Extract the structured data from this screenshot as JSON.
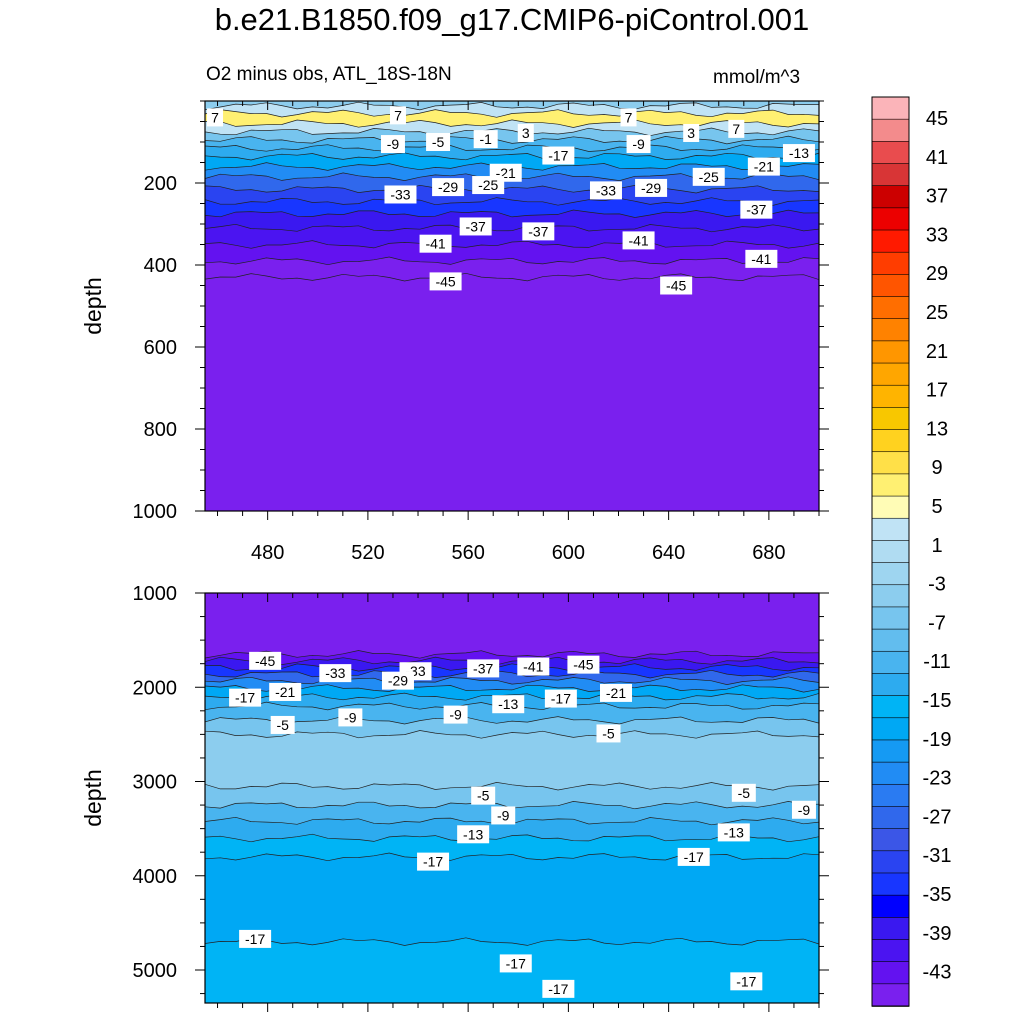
{
  "title": "b.e21.B1850.f09_g17.CMIP6-piControl.001",
  "subtitle_left": "O2 minus obs, ATL_18S-18N",
  "subtitle_right": "mmol/m^3",
  "chart_data": [
    {
      "type": "heatmap",
      "panel": "upper",
      "ylabel": "depth",
      "xlim": [
        455,
        700
      ],
      "ylim": [
        1000,
        0
      ],
      "x_ticks": [
        480,
        520,
        560,
        600,
        640,
        680
      ],
      "y_ticks": [
        200,
        400,
        600,
        800,
        1000
      ],
      "depth_bands": [
        {
          "from": 0,
          "to": 12,
          "value": -3
        },
        {
          "from": 12,
          "to": 30,
          "value": 3
        },
        {
          "from": 30,
          "to": 55,
          "value": 7
        },
        {
          "from": 55,
          "to": 75,
          "value": 3
        },
        {
          "from": 75,
          "to": 95,
          "value": -5
        },
        {
          "from": 95,
          "to": 115,
          "value": -9
        },
        {
          "from": 115,
          "to": 135,
          "value": -13
        },
        {
          "from": 135,
          "to": 160,
          "value": -17
        },
        {
          "from": 160,
          "to": 185,
          "value": -21
        },
        {
          "from": 185,
          "to": 215,
          "value": -25
        },
        {
          "from": 215,
          "to": 245,
          "value": -29
        },
        {
          "from": 245,
          "to": 275,
          "value": -33
        },
        {
          "from": 275,
          "to": 310,
          "value": -37
        },
        {
          "from": 310,
          "to": 350,
          "value": -39
        },
        {
          "from": 350,
          "to": 390,
          "value": -41
        },
        {
          "from": 390,
          "to": 430,
          "value": -43
        },
        {
          "from": 430,
          "to": 1000,
          "value": -45
        }
      ],
      "contour_labels": [
        {
          "x": 459,
          "y": 40,
          "text": "7"
        },
        {
          "x": 532,
          "y": 35,
          "text": "7"
        },
        {
          "x": 530,
          "y": 105,
          "text": "-9"
        },
        {
          "x": 548,
          "y": 100,
          "text": "-5"
        },
        {
          "x": 567,
          "y": 93,
          "text": "-1"
        },
        {
          "x": 583,
          "y": 78,
          "text": "3"
        },
        {
          "x": 624,
          "y": 40,
          "text": "7"
        },
        {
          "x": 649,
          "y": 78,
          "text": "3"
        },
        {
          "x": 667,
          "y": 68,
          "text": "7"
        },
        {
          "x": 628,
          "y": 105,
          "text": "-9"
        },
        {
          "x": 596,
          "y": 133,
          "text": "-17"
        },
        {
          "x": 575,
          "y": 175,
          "text": "-21"
        },
        {
          "x": 678,
          "y": 160,
          "text": "-21"
        },
        {
          "x": 692,
          "y": 127,
          "text": "-13"
        },
        {
          "x": 656,
          "y": 185,
          "text": "-25"
        },
        {
          "x": 533,
          "y": 228,
          "text": "-33"
        },
        {
          "x": 552,
          "y": 210,
          "text": "-29"
        },
        {
          "x": 568,
          "y": 205,
          "text": "-25"
        },
        {
          "x": 615,
          "y": 218,
          "text": "-33"
        },
        {
          "x": 633,
          "y": 212,
          "text": "-29"
        },
        {
          "x": 675,
          "y": 265,
          "text": "-37"
        },
        {
          "x": 588,
          "y": 318,
          "text": "-37"
        },
        {
          "x": 563,
          "y": 306,
          "text": "-37"
        },
        {
          "x": 547,
          "y": 348,
          "text": "-41"
        },
        {
          "x": 628,
          "y": 340,
          "text": "-41"
        },
        {
          "x": 677,
          "y": 385,
          "text": "-41"
        },
        {
          "x": 551,
          "y": 440,
          "text": "-45"
        },
        {
          "x": 643,
          "y": 450,
          "text": "-45"
        }
      ]
    },
    {
      "type": "heatmap",
      "panel": "lower",
      "ylabel": "depth",
      "xlim": [
        455,
        700
      ],
      "ylim": [
        5350,
        1000
      ],
      "y_ticks": [
        1000,
        2000,
        3000,
        4000,
        5000
      ],
      "depth_bands": [
        {
          "from": 1000,
          "to": 1650,
          "value": -43
        },
        {
          "from": 1650,
          "to": 1720,
          "value": -41
        },
        {
          "from": 1720,
          "to": 1790,
          "value": -37
        },
        {
          "from": 1790,
          "to": 1860,
          "value": -31
        },
        {
          "from": 1860,
          "to": 1930,
          "value": -25
        },
        {
          "from": 1930,
          "to": 2010,
          "value": -21
        },
        {
          "from": 2010,
          "to": 2100,
          "value": -17
        },
        {
          "from": 2100,
          "to": 2200,
          "value": -13
        },
        {
          "from": 2200,
          "to": 2350,
          "value": -9
        },
        {
          "from": 2350,
          "to": 2500,
          "value": -5
        },
        {
          "from": 2500,
          "to": 3050,
          "value": -3
        },
        {
          "from": 3050,
          "to": 3250,
          "value": -5
        },
        {
          "from": 3250,
          "to": 3420,
          "value": -9
        },
        {
          "from": 3420,
          "to": 3600,
          "value": -13
        },
        {
          "from": 3600,
          "to": 3800,
          "value": -15
        },
        {
          "from": 3800,
          "to": 4700,
          "value": -17
        },
        {
          "from": 4700,
          "to": 5350,
          "value": -15
        }
      ],
      "contour_labels": [
        {
          "x": 479,
          "y": 1720,
          "text": "-45"
        },
        {
          "x": 507,
          "y": 1850,
          "text": "-33"
        },
        {
          "x": 539,
          "y": 1830,
          "text": "-33"
        },
        {
          "x": 566,
          "y": 1800,
          "text": "-37"
        },
        {
          "x": 586,
          "y": 1780,
          "text": "-41"
        },
        {
          "x": 606,
          "y": 1760,
          "text": "-45"
        },
        {
          "x": 471,
          "y": 2110,
          "text": "-17"
        },
        {
          "x": 487,
          "y": 2050,
          "text": "-21"
        },
        {
          "x": 532,
          "y": 1930,
          "text": "-29"
        },
        {
          "x": 576,
          "y": 2180,
          "text": "-13"
        },
        {
          "x": 597,
          "y": 2120,
          "text": "-17"
        },
        {
          "x": 619,
          "y": 2060,
          "text": "-21"
        },
        {
          "x": 486,
          "y": 2400,
          "text": "-5"
        },
        {
          "x": 513,
          "y": 2320,
          "text": "-9"
        },
        {
          "x": 555,
          "y": 2290,
          "text": "-9"
        },
        {
          "x": 616,
          "y": 2490,
          "text": "-5"
        },
        {
          "x": 566,
          "y": 3150,
          "text": "-5"
        },
        {
          "x": 574,
          "y": 3360,
          "text": "-9"
        },
        {
          "x": 562,
          "y": 3560,
          "text": "-13"
        },
        {
          "x": 546,
          "y": 3850,
          "text": "-17"
        },
        {
          "x": 670,
          "y": 3120,
          "text": "-5"
        },
        {
          "x": 694,
          "y": 3300,
          "text": "-9"
        },
        {
          "x": 666,
          "y": 3540,
          "text": "-13"
        },
        {
          "x": 650,
          "y": 3800,
          "text": "-17"
        },
        {
          "x": 475,
          "y": 4670,
          "text": "-17"
        },
        {
          "x": 579,
          "y": 4930,
          "text": "-17"
        },
        {
          "x": 596,
          "y": 5200,
          "text": "-17"
        },
        {
          "x": 671,
          "y": 5120,
          "text": "-17"
        }
      ]
    }
  ],
  "colorbar": {
    "labels": [
      "45",
      "41",
      "37",
      "33",
      "29",
      "25",
      "21",
      "17",
      "13",
      "9",
      "5",
      "1",
      "-3",
      "-7",
      "-11",
      "-15",
      "-19",
      "-23",
      "-27",
      "-31",
      "-35",
      "-39",
      "-43"
    ],
    "colors": [
      "#fbb4b9",
      "#f38b8c",
      "#e94c4e",
      "#d83536",
      "#cc0000",
      "#ec0000",
      "#ff1a00",
      "#ff3d00",
      "#ff5500",
      "#ff6e00",
      "#ff8200",
      "#ff9600",
      "#ffa600",
      "#ffb400",
      "#f8c700",
      "#ffd21f",
      "#ffe048",
      "#fff072",
      "#fffcb6",
      "#c0e3f5",
      "#b0dcf2",
      "#9ed5f0",
      "#8ccdee",
      "#77c5ee",
      "#62bdee",
      "#49b4ef",
      "#2dabef",
      "#00b4f5",
      "#00a8f4",
      "#159af3",
      "#218cf4",
      "#2a7bf2",
      "#3068ec",
      "#3b56e7",
      "#2a44f1",
      "#1836ff",
      "#0000ff",
      "#3a18f0",
      "#4b14f1",
      "#6312f0",
      "#7a20ee"
    ]
  }
}
